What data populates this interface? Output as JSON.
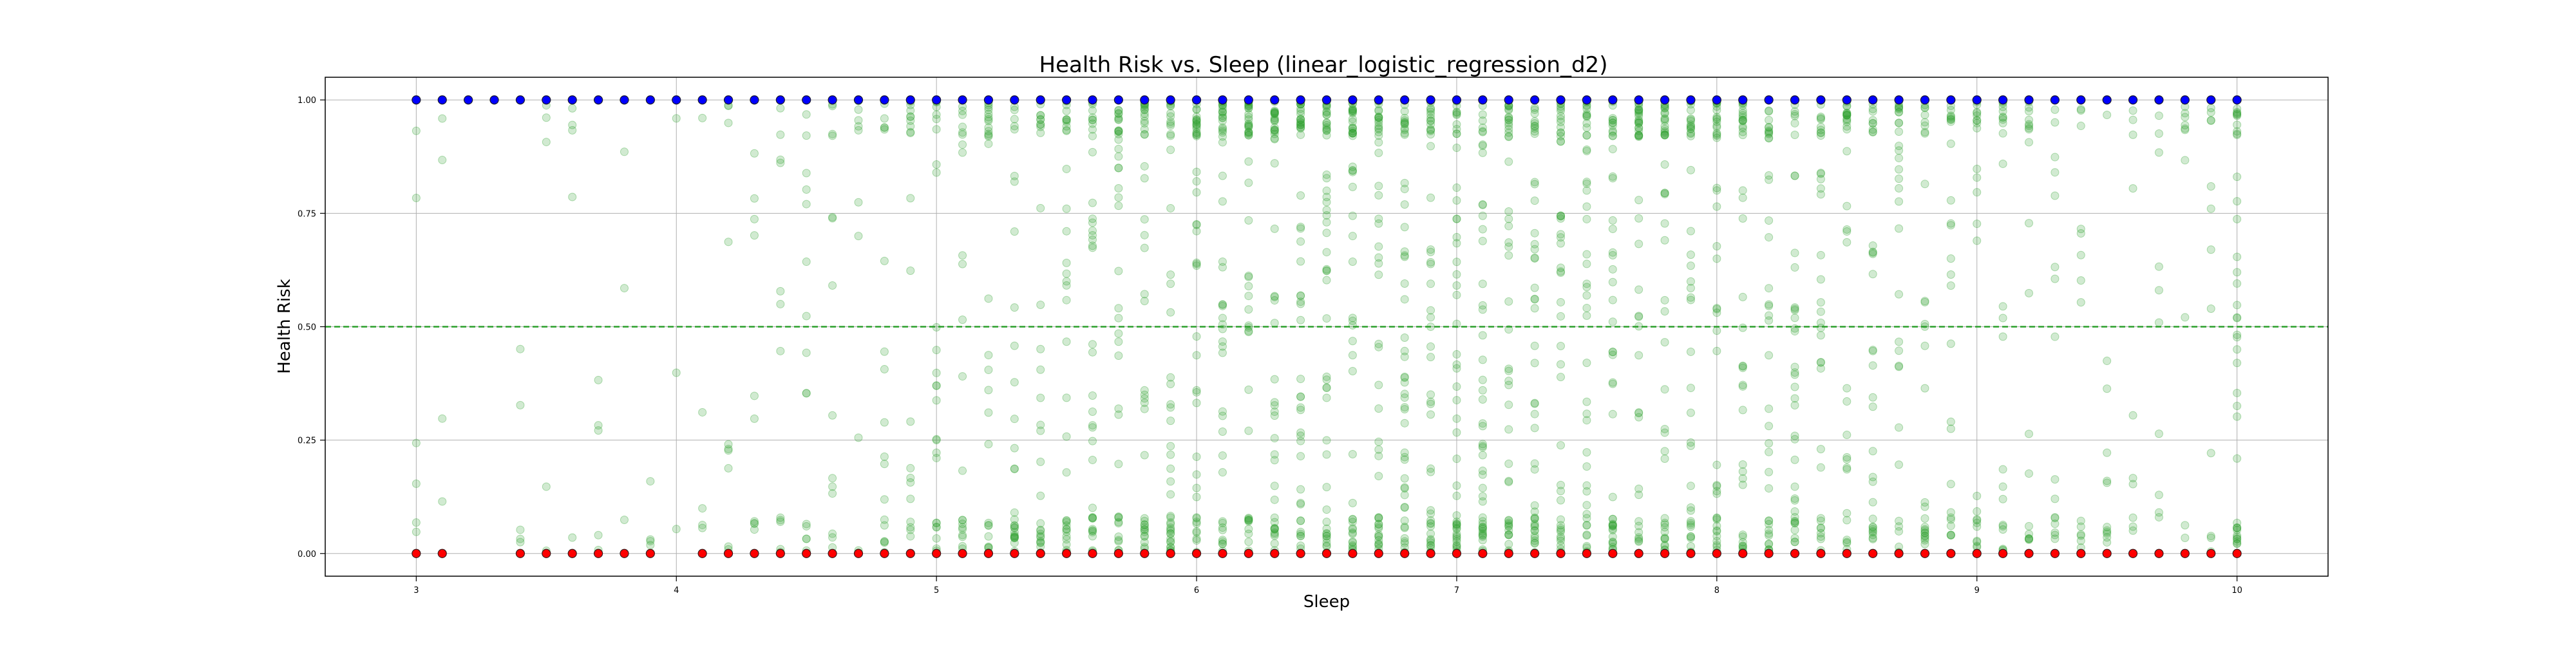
{
  "chart_data": {
    "type": "scatter",
    "title": "Health Risk vs. Sleep (linear_logistic_regression_d2)",
    "xlabel": "Sleep",
    "ylabel": "Health Risk",
    "xlim": [
      2.65,
      10.35
    ],
    "ylim": [
      -0.05,
      1.05
    ],
    "x_ticks": [
      3,
      4,
      5,
      6,
      7,
      8,
      9,
      10
    ],
    "y_ticks": [
      "0.00",
      "0.25",
      "0.50",
      "0.75",
      "1.00"
    ],
    "grid": true,
    "threshold_line": {
      "y": 0.5,
      "color": "#2ca02c",
      "style": "dashed"
    },
    "series": [
      {
        "color": "#0000ff",
        "marker": "circle-outlined",
        "y": 1.0,
        "x": [
          3.0,
          3.1,
          3.2,
          3.3,
          3.4,
          3.5,
          3.6,
          3.7,
          3.8,
          3.9,
          4.0,
          4.1,
          4.2,
          4.3,
          4.4,
          4.5,
          4.6,
          4.7,
          4.8,
          4.9,
          5.0,
          5.1,
          5.2,
          5.3,
          5.4,
          5.5,
          5.6,
          5.7,
          5.8,
          5.9,
          6.0,
          6.1,
          6.2,
          6.3,
          6.4,
          6.5,
          6.6,
          6.7,
          6.8,
          6.9,
          7.0,
          7.1,
          7.2,
          7.3,
          7.4,
          7.5,
          7.6,
          7.7,
          7.8,
          7.9,
          8.0,
          8.1,
          8.2,
          8.3,
          8.4,
          8.5,
          8.6,
          8.7,
          8.8,
          8.9,
          9.0,
          9.1,
          9.2,
          9.3,
          9.4,
          9.5,
          9.6,
          9.7,
          9.8,
          9.9,
          10.0
        ]
      },
      {
        "color": "#ff0000",
        "marker": "circle-outlined",
        "y": 0.0,
        "x": [
          3.0,
          3.1,
          3.4,
          3.5,
          3.6,
          3.7,
          3.8,
          3.9,
          4.1,
          4.2,
          4.3,
          4.4,
          4.5,
          4.6,
          4.7,
          4.8,
          4.9,
          5.0,
          5.1,
          5.2,
          5.3,
          5.4,
          5.5,
          5.6,
          5.7,
          5.8,
          5.9,
          6.0,
          6.1,
          6.2,
          6.3,
          6.4,
          6.5,
          6.6,
          6.7,
          6.8,
          6.9,
          7.0,
          7.1,
          7.2,
          7.3,
          7.4,
          7.5,
          7.6,
          7.7,
          7.8,
          7.9,
          8.0,
          8.1,
          8.2,
          8.3,
          8.4,
          8.5,
          8.6,
          8.7,
          8.8,
          8.9,
          9.0,
          9.1,
          9.2,
          9.3,
          9.4,
          9.5,
          9.6,
          9.7,
          9.8,
          9.9,
          10.0
        ]
      },
      {
        "color": "#2ca02c",
        "marker": "circle-translucent",
        "x_values": [
          3.0,
          3.1,
          3.2,
          3.3,
          3.4,
          3.5,
          3.6,
          3.7,
          3.8,
          3.9,
          4.0,
          4.1,
          4.2,
          4.3,
          4.4,
          4.5,
          4.6,
          4.7,
          4.8,
          4.9,
          5.0,
          5.1,
          5.2,
          5.3,
          5.4,
          5.5,
          5.6,
          5.7,
          5.8,
          5.9,
          6.0,
          6.1,
          6.2,
          6.3,
          6.4,
          6.5,
          6.6,
          6.7,
          6.8,
          6.9,
          7.0,
          7.1,
          7.2,
          7.3,
          7.4,
          7.5,
          7.6,
          7.7,
          7.8,
          7.9,
          8.0,
          8.1,
          8.2,
          8.3,
          8.4,
          8.5,
          8.6,
          8.7,
          8.8,
          8.9,
          9.0,
          9.1,
          9.2,
          9.3,
          9.4,
          9.5,
          9.6,
          9.7,
          9.8,
          9.9,
          10.0
        ],
        "y_range": [
          0.0,
          1.0
        ],
        "points_per_x": [
          6,
          4,
          0,
          0,
          5,
          5,
          5,
          5,
          3,
          4,
          3,
          5,
          10,
          10,
          12,
          15,
          14,
          10,
          18,
          20,
          25,
          22,
          28,
          30,
          30,
          34,
          38,
          40,
          42,
          44,
          46,
          48,
          50,
          48,
          50,
          52,
          50,
          50,
          50,
          48,
          50,
          48,
          48,
          46,
          46,
          48,
          46,
          44,
          44,
          42,
          42,
          40,
          38,
          38,
          36,
          34,
          32,
          30,
          28,
          26,
          24,
          22,
          20,
          16,
          14,
          12,
          10,
          10,
          10,
          12,
          40
        ]
      }
    ]
  }
}
